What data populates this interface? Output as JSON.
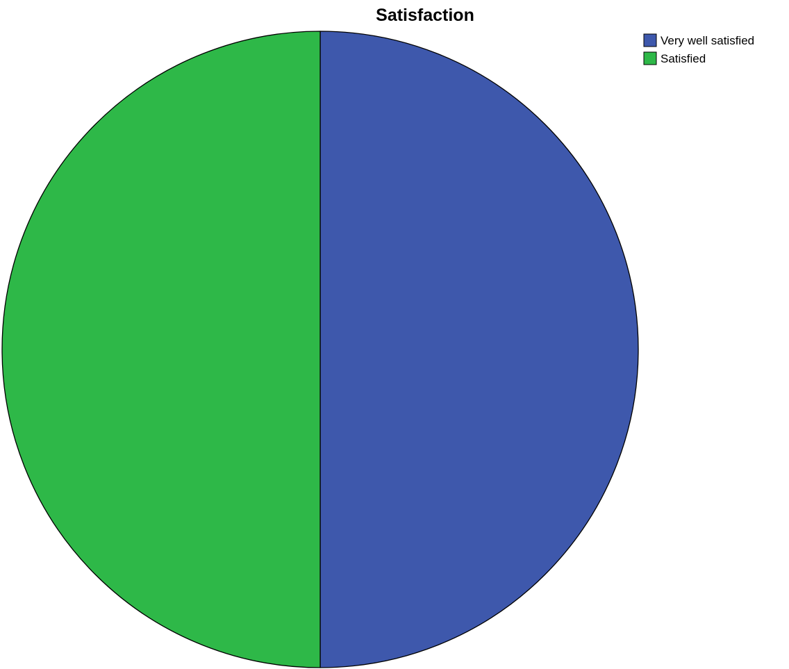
{
  "chart_data": {
    "type": "pie",
    "title": "Satisfaction",
    "start": "top",
    "direction": "clockwise",
    "legend_position": "top-right",
    "slices": [
      {
        "label": "Very well satisfied",
        "value": 50,
        "color": "#3E58AC"
      },
      {
        "label": "Satisfied",
        "value": 50,
        "color": "#2EB848"
      }
    ]
  }
}
